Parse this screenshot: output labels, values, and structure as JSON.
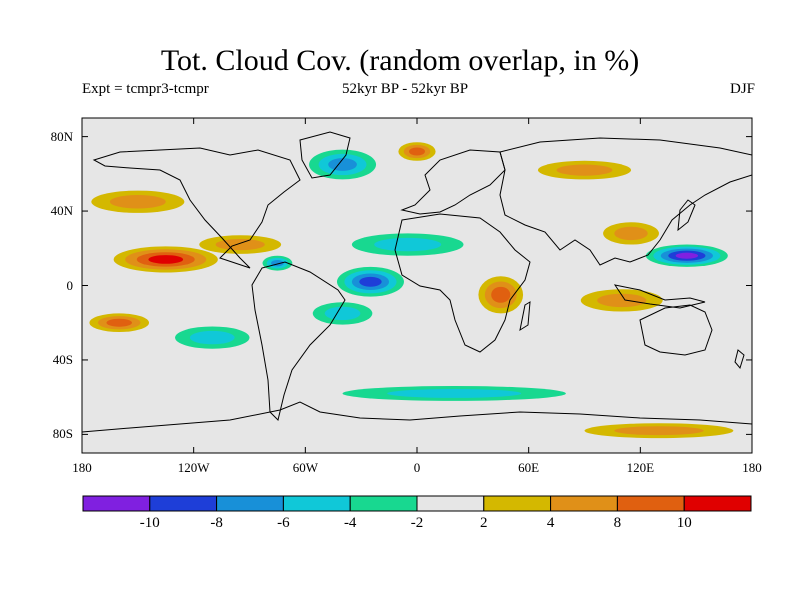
{
  "header": {
    "title": "Tot. Cloud Cov. (random overlap, in %)",
    "experiment": "Expt = tcmpr3-tcmpr",
    "period": "52kyr BP - 52kyr BP",
    "season": "DJF"
  },
  "map": {
    "lat_ticks": [
      {
        "label": "80N",
        "value": 80
      },
      {
        "label": "40N",
        "value": 40
      },
      {
        "label": "0",
        "value": 0
      },
      {
        "label": "40S",
        "value": -40
      },
      {
        "label": "80S",
        "value": -80
      }
    ],
    "lon_ticks": [
      {
        "label": "180",
        "value": -180
      },
      {
        "label": "120W",
        "value": -120
      },
      {
        "label": "60W",
        "value": -60
      },
      {
        "label": "0",
        "value": 0
      },
      {
        "label": "60E",
        "value": 60
      },
      {
        "label": "120E",
        "value": 120
      },
      {
        "label": "180",
        "value": 180
      }
    ],
    "lat_range": [
      -90,
      90
    ],
    "lon_range": [
      -180,
      180
    ],
    "features": [
      {
        "name": "anomaly-subtropical-north-pacific",
        "lon": -135,
        "lat": 14,
        "rx": 28,
        "ry": 7,
        "level": 10
      },
      {
        "name": "anomaly-gulf-of-mexico",
        "lon": -95,
        "lat": 22,
        "rx": 22,
        "ry": 5,
        "level": 4
      },
      {
        "name": "anomaly-south-pacific-east",
        "lon": -160,
        "lat": -20,
        "rx": 16,
        "ry": 5,
        "level": 8
      },
      {
        "name": "anomaly-tropical-atlantic-low",
        "lon": -25,
        "lat": 2,
        "rx": 18,
        "ry": 8,
        "level": -8
      },
      {
        "name": "anomaly-central-atlantic-band",
        "lon": -5,
        "lat": 22,
        "rx": 30,
        "ry": 6,
        "level": -4
      },
      {
        "name": "anomaly-south-atlantic",
        "lon": -40,
        "lat": -15,
        "rx": 16,
        "ry": 6,
        "level": -4
      },
      {
        "name": "anomaly-caribbean",
        "lon": -75,
        "lat": 12,
        "rx": 8,
        "ry": 4,
        "level": -6
      },
      {
        "name": "anomaly-east-africa",
        "lon": 45,
        "lat": -5,
        "rx": 12,
        "ry": 10,
        "level": 8
      },
      {
        "name": "anomaly-west-pacific-low",
        "lon": 145,
        "lat": 16,
        "rx": 22,
        "ry": 6,
        "level": -10
      },
      {
        "name": "anomaly-east-china-sea",
        "lon": 115,
        "lat": 28,
        "rx": 15,
        "ry": 6,
        "level": 4
      },
      {
        "name": "anomaly-maritime-continent",
        "lon": 110,
        "lat": -8,
        "rx": 22,
        "ry": 6,
        "level": 4
      },
      {
        "name": "anomaly-north-atlantic-high",
        "lon": -40,
        "lat": 65,
        "rx": 18,
        "ry": 8,
        "level": -6
      },
      {
        "name": "anomaly-scandinavia",
        "lon": 0,
        "lat": 72,
        "rx": 10,
        "ry": 5,
        "level": 8
      },
      {
        "name": "anomaly-southern-ocean-band",
        "lon": 20,
        "lat": -58,
        "rx": 60,
        "ry": 4,
        "level": -4
      },
      {
        "name": "anomaly-southern-ocean-east",
        "lon": 130,
        "lat": -78,
        "rx": 40,
        "ry": 4,
        "level": 4
      },
      {
        "name": "anomaly-north-pacific-mid",
        "lon": -150,
        "lat": 45,
        "rx": 25,
        "ry": 6,
        "level": 4
      },
      {
        "name": "anomaly-siberia",
        "lon": 90,
        "lat": 62,
        "rx": 25,
        "ry": 5,
        "level": 4
      },
      {
        "name": "anomaly-south-pacific-west",
        "lon": -110,
        "lat": -28,
        "rx": 20,
        "ry": 6,
        "level": -4
      }
    ]
  },
  "colorbar": {
    "colors": [
      "#8020e0",
      "#1e3ed8",
      "#1890d8",
      "#10c8d8",
      "#18d890",
      "#e6e6e6",
      "#d4b800",
      "#e09018",
      "#e06010",
      "#e00000"
    ],
    "labels": [
      "-10",
      "-8",
      "-6",
      "-4",
      "-2",
      "2",
      "4",
      "8",
      "10"
    ]
  }
}
